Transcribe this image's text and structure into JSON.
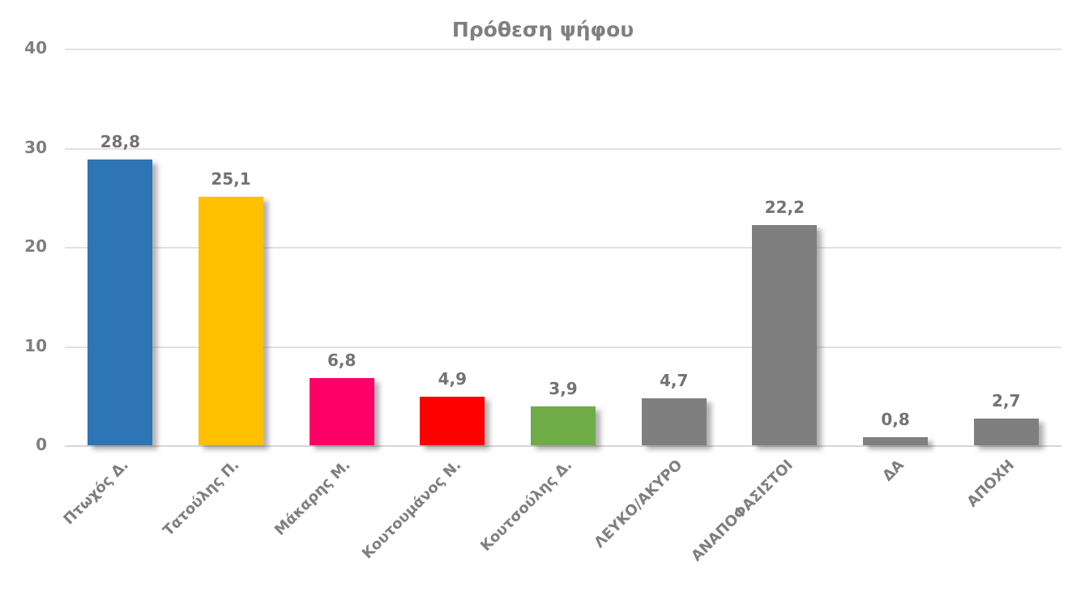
{
  "chart_data": {
    "type": "bar",
    "title": "Πρόθεση ψήφου",
    "categories": [
      "Πτωχός Δ.",
      "Τατούλης Π.",
      "Μάκαρης Μ.",
      "Κουτουμάνος Ν.",
      "Κουτσούλης Δ.",
      "ΛΕΥΚΟ/ΑΚΥΡΟ",
      "ΑΝΑΠΟΦΑΣΙΣΤΟΙ",
      "ΔΑ",
      "ΑΠΟΧΗ"
    ],
    "values": [
      28.8,
      25.1,
      6.8,
      4.9,
      3.9,
      4.7,
      22.2,
      0.8,
      2.7
    ],
    "value_labels": [
      "28,8",
      "25,1",
      "6,8",
      "4,9",
      "3,9",
      "4,7",
      "22,2",
      "0,8",
      "2,7"
    ],
    "bar_colors": [
      "#2E75B6",
      "#FFC000",
      "#FF0066",
      "#FF0000",
      "#6FAC47",
      "#7F7F7F",
      "#7F7F7F",
      "#7F7F7F",
      "#7F7F7F"
    ],
    "xlabel": "",
    "ylabel": "",
    "ylim": [
      0,
      40
    ],
    "yticks": [
      0,
      10,
      20,
      30,
      40
    ],
    "ytick_labels": [
      "0",
      "10",
      "20",
      "30",
      "40"
    ],
    "grid": true,
    "legend": false,
    "colors": {
      "title_text": "#7F7F7F",
      "axis_text": "#7F7F7F",
      "value_label_text": "#737373",
      "gridline": "#E2E2E2",
      "background": "#FFFFFF"
    }
  }
}
